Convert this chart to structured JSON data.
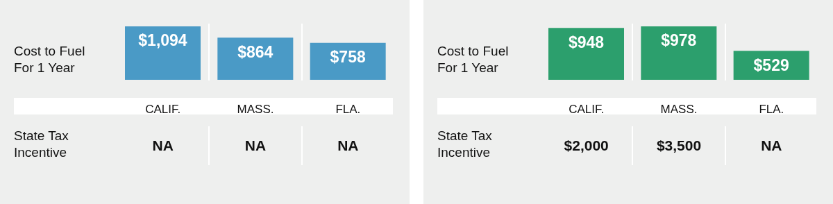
{
  "chart_data": [
    {
      "type": "bar",
      "ylabel": "Cost to Fuel For 1 Year",
      "categories": [
        "CALIF.",
        "MASS.",
        "FLA."
      ],
      "values": [
        1094,
        864,
        758
      ],
      "value_labels": [
        "$1,094",
        "$864",
        "$758"
      ],
      "color": "#4a9ac6",
      "annotations": [
        "State Tax Incentive",
        "NA",
        "NA",
        "NA"
      ]
    },
    {
      "type": "bar",
      "ylabel": "Cost to Fuel For 1 Year",
      "categories": [
        "CALIF.",
        "MASS.",
        "FLA."
      ],
      "values": [
        948,
        978,
        529
      ],
      "value_labels": [
        "$948",
        "$978",
        "$529"
      ],
      "color": "#2c9f6d",
      "annotations": [
        "State Tax Incentive",
        "$2,000",
        "$3,500",
        "NA"
      ]
    }
  ]
}
